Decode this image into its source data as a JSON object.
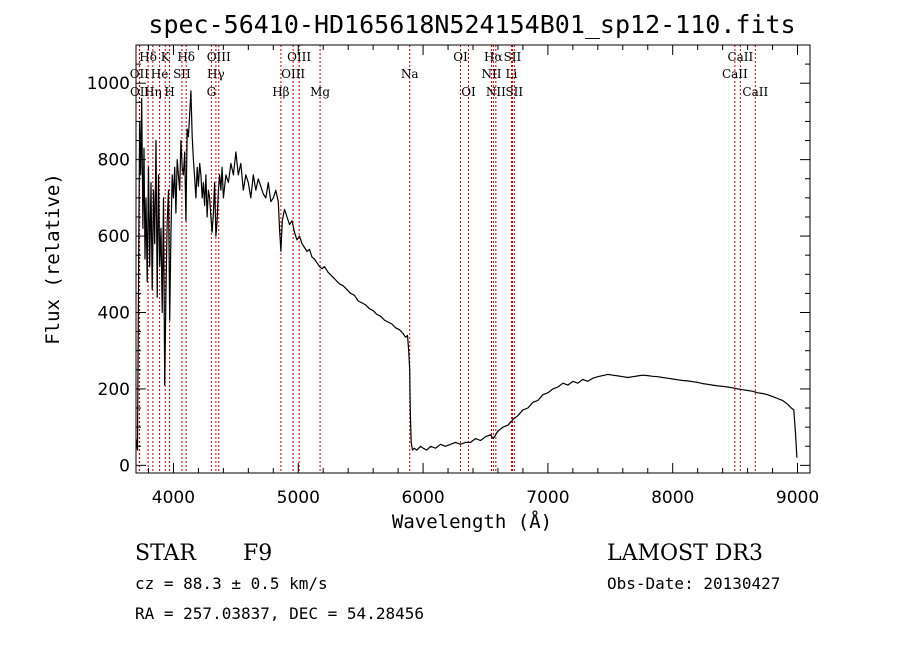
{
  "chart_data": {
    "type": "line",
    "title": "spec-56410-HD165618N524154B01_sp12-110.fits",
    "xlabel": "Wavelength (Å)",
    "ylabel": "Flux (relative)",
    "xlim": [
      3700,
      9100
    ],
    "ylim": [
      -20,
      1100
    ],
    "xticks": [
      4000,
      5000,
      6000,
      7000,
      8000,
      9000
    ],
    "yticks": [
      0,
      200,
      400,
      600,
      800,
      1000
    ],
    "series": [
      {
        "name": "flux",
        "points": [
          [
            3700,
            70
          ],
          [
            3712,
            40
          ],
          [
            3722,
            560
          ],
          [
            3730,
            900
          ],
          [
            3738,
            760
          ],
          [
            3746,
            960
          ],
          [
            3755,
            620
          ],
          [
            3764,
            830
          ],
          [
            3772,
            540
          ],
          [
            3780,
            700
          ],
          [
            3790,
            480
          ],
          [
            3800,
            780
          ],
          [
            3810,
            520
          ],
          [
            3820,
            740
          ],
          [
            3830,
            460
          ],
          [
            3840,
            720
          ],
          [
            3850,
            580
          ],
          [
            3860,
            850
          ],
          [
            3870,
            440
          ],
          [
            3880,
            760
          ],
          [
            3890,
            520
          ],
          [
            3900,
            620
          ],
          [
            3910,
            400
          ],
          [
            3920,
            700
          ],
          [
            3930,
            210
          ],
          [
            3940,
            460
          ],
          [
            3950,
            640
          ],
          [
            3960,
            720
          ],
          [
            3970,
            380
          ],
          [
            3980,
            600
          ],
          [
            3990,
            760
          ],
          [
            4000,
            700
          ],
          [
            4010,
            780
          ],
          [
            4020,
            660
          ],
          [
            4030,
            800
          ],
          [
            4040,
            760
          ],
          [
            4050,
            720
          ],
          [
            4060,
            850
          ],
          [
            4070,
            780
          ],
          [
            4080,
            760
          ],
          [
            4090,
            820
          ],
          [
            4100,
            640
          ],
          [
            4110,
            880
          ],
          [
            4120,
            860
          ],
          [
            4130,
            920
          ],
          [
            4140,
            980
          ],
          [
            4150,
            860
          ],
          [
            4160,
            800
          ],
          [
            4170,
            750
          ],
          [
            4180,
            700
          ],
          [
            4190,
            780
          ],
          [
            4200,
            730
          ],
          [
            4210,
            790
          ],
          [
            4220,
            760
          ],
          [
            4230,
            700
          ],
          [
            4240,
            740
          ],
          [
            4250,
            680
          ],
          [
            4260,
            760
          ],
          [
            4270,
            650
          ],
          [
            4280,
            720
          ],
          [
            4290,
            700
          ],
          [
            4300,
            650
          ],
          [
            4310,
            610
          ],
          [
            4320,
            660
          ],
          [
            4330,
            740
          ],
          [
            4340,
            600
          ],
          [
            4350,
            640
          ],
          [
            4360,
            720
          ],
          [
            4370,
            760
          ],
          [
            4380,
            720
          ],
          [
            4390,
            780
          ],
          [
            4400,
            700
          ],
          [
            4420,
            760
          ],
          [
            4440,
            740
          ],
          [
            4460,
            790
          ],
          [
            4480,
            760
          ],
          [
            4500,
            820
          ],
          [
            4520,
            760
          ],
          [
            4540,
            790
          ],
          [
            4560,
            720
          ],
          [
            4580,
            760
          ],
          [
            4600,
            740
          ],
          [
            4620,
            700
          ],
          [
            4640,
            760
          ],
          [
            4660,
            720
          ],
          [
            4680,
            750
          ],
          [
            4700,
            730
          ],
          [
            4720,
            710
          ],
          [
            4740,
            700
          ],
          [
            4760,
            740
          ],
          [
            4780,
            690
          ],
          [
            4800,
            700
          ],
          [
            4820,
            720
          ],
          [
            4840,
            690
          ],
          [
            4850,
            620
          ],
          [
            4861,
            560
          ],
          [
            4872,
            640
          ],
          [
            4890,
            670
          ],
          [
            4910,
            650
          ],
          [
            4930,
            630
          ],
          [
            4950,
            640
          ],
          [
            4970,
            610
          ],
          [
            4990,
            590
          ],
          [
            5010,
            600
          ],
          [
            5030,
            580
          ],
          [
            5050,
            570
          ],
          [
            5070,
            560
          ],
          [
            5090,
            565
          ],
          [
            5110,
            545
          ],
          [
            5130,
            540
          ],
          [
            5150,
            530
          ],
          [
            5170,
            520
          ],
          [
            5190,
            515
          ],
          [
            5210,
            520
          ],
          [
            5240,
            505
          ],
          [
            5270,
            495
          ],
          [
            5300,
            485
          ],
          [
            5330,
            475
          ],
          [
            5360,
            470
          ],
          [
            5390,
            460
          ],
          [
            5420,
            450
          ],
          [
            5450,
            445
          ],
          [
            5480,
            430
          ],
          [
            5510,
            425
          ],
          [
            5540,
            420
          ],
          [
            5570,
            410
          ],
          [
            5600,
            405
          ],
          [
            5630,
            395
          ],
          [
            5660,
            390
          ],
          [
            5690,
            380
          ],
          [
            5720,
            375
          ],
          [
            5750,
            370
          ],
          [
            5780,
            360
          ],
          [
            5810,
            355
          ],
          [
            5840,
            345
          ],
          [
            5860,
            335
          ],
          [
            5875,
            340
          ],
          [
            5885,
            300
          ],
          [
            5893,
            250
          ],
          [
            5898,
            140
          ],
          [
            5905,
            60
          ],
          [
            5915,
            40
          ],
          [
            5930,
            45
          ],
          [
            5950,
            40
          ],
          [
            5980,
            50
          ],
          [
            6000,
            45
          ],
          [
            6030,
            40
          ],
          [
            6060,
            50
          ],
          [
            6100,
            45
          ],
          [
            6140,
            55
          ],
          [
            6180,
            50
          ],
          [
            6220,
            55
          ],
          [
            6260,
            60
          ],
          [
            6300,
            55
          ],
          [
            6340,
            60
          ],
          [
            6380,
            60
          ],
          [
            6420,
            70
          ],
          [
            6460,
            65
          ],
          [
            6500,
            75
          ],
          [
            6540,
            80
          ],
          [
            6563,
            70
          ],
          [
            6600,
            90
          ],
          [
            6640,
            100
          ],
          [
            6680,
            105
          ],
          [
            6720,
            120
          ],
          [
            6760,
            130
          ],
          [
            6800,
            145
          ],
          [
            6840,
            150
          ],
          [
            6880,
            165
          ],
          [
            6920,
            170
          ],
          [
            6960,
            185
          ],
          [
            7000,
            190
          ],
          [
            7040,
            200
          ],
          [
            7080,
            205
          ],
          [
            7120,
            215
          ],
          [
            7160,
            210
          ],
          [
            7200,
            220
          ],
          [
            7240,
            215
          ],
          [
            7280,
            225
          ],
          [
            7320,
            220
          ],
          [
            7360,
            228
          ],
          [
            7400,
            232
          ],
          [
            7440,
            235
          ],
          [
            7480,
            238
          ],
          [
            7520,
            236
          ],
          [
            7560,
            234
          ],
          [
            7600,
            232
          ],
          [
            7640,
            230
          ],
          [
            7680,
            232
          ],
          [
            7720,
            234
          ],
          [
            7760,
            236
          ],
          [
            7800,
            235
          ],
          [
            7840,
            233
          ],
          [
            7880,
            232
          ],
          [
            7920,
            230
          ],
          [
            7960,
            228
          ],
          [
            8000,
            226
          ],
          [
            8040,
            224
          ],
          [
            8080,
            222
          ],
          [
            8120,
            221
          ],
          [
            8160,
            219
          ],
          [
            8200,
            217
          ],
          [
            8240,
            214
          ],
          [
            8280,
            212
          ],
          [
            8320,
            210
          ],
          [
            8360,
            208
          ],
          [
            8400,
            207
          ],
          [
            8440,
            205
          ],
          [
            8480,
            203
          ],
          [
            8520,
            200
          ],
          [
            8560,
            198
          ],
          [
            8600,
            196
          ],
          [
            8640,
            194
          ],
          [
            8680,
            190
          ],
          [
            8720,
            188
          ],
          [
            8760,
            185
          ],
          [
            8800,
            180
          ],
          [
            8840,
            175
          ],
          [
            8880,
            170
          ],
          [
            8920,
            160
          ],
          [
            8950,
            150
          ],
          [
            8970,
            145
          ],
          [
            8985,
            80
          ],
          [
            8995,
            20
          ]
        ]
      }
    ],
    "lines": [
      {
        "label": "Hδ",
        "wl": 3797,
        "row": 0
      },
      {
        "label": "OII",
        "wl": 3727,
        "row": 1
      },
      {
        "label": "OII",
        "wl": 3729,
        "row": 2
      },
      {
        "label": "K",
        "wl": 3934,
        "row": 0
      },
      {
        "label": "He",
        "wl": 3889,
        "row": 1
      },
      {
        "label": "Hη",
        "wl": 3835,
        "row": 2
      },
      {
        "label": "H",
        "wl": 3969,
        "row": 2
      },
      {
        "label": "SII",
        "wl": 4068,
        "row": 1
      },
      {
        "label": "Hδ",
        "wl": 4102,
        "row": 0
      },
      {
        "label": "OIII",
        "wl": 4363,
        "row": 0
      },
      {
        "label": "Hγ",
        "wl": 4340,
        "row": 1
      },
      {
        "label": "G",
        "wl": 4304,
        "row": 2
      },
      {
        "label": "Hβ",
        "wl": 4861,
        "row": 2
      },
      {
        "label": "OIII",
        "wl": 5007,
        "row": 0
      },
      {
        "label": "OIII",
        "wl": 4959,
        "row": 1
      },
      {
        "label": "Mg",
        "wl": 5175,
        "row": 2
      },
      {
        "label": "Na",
        "wl": 5893,
        "row": 1
      },
      {
        "label": "OI",
        "wl": 6300,
        "row": 0
      },
      {
        "label": "OI",
        "wl": 6364,
        "row": 2
      },
      {
        "label": "Hα",
        "wl": 6563,
        "row": 0
      },
      {
        "label": "NII",
        "wl": 6548,
        "row": 1
      },
      {
        "label": "NII",
        "wl": 6583,
        "row": 2
      },
      {
        "label": "SII",
        "wl": 6716,
        "row": 0
      },
      {
        "label": "Li",
        "wl": 6708,
        "row": 1
      },
      {
        "label": "SII",
        "wl": 6731,
        "row": 2
      },
      {
        "label": "CaII",
        "wl": 8542,
        "row": 0
      },
      {
        "label": "CaII",
        "wl": 8498,
        "row": 1
      },
      {
        "label": "CaII",
        "wl": 8662,
        "row": 2
      }
    ]
  },
  "info": {
    "class": "STAR",
    "subclass": "F9",
    "survey": "LAMOST DR3",
    "cz": "cz = 88.3 ± 0.5 km/s",
    "obsdate": "Obs-Date: 20130427",
    "radec": "RA = 257.03837, DEC =  54.28456"
  }
}
